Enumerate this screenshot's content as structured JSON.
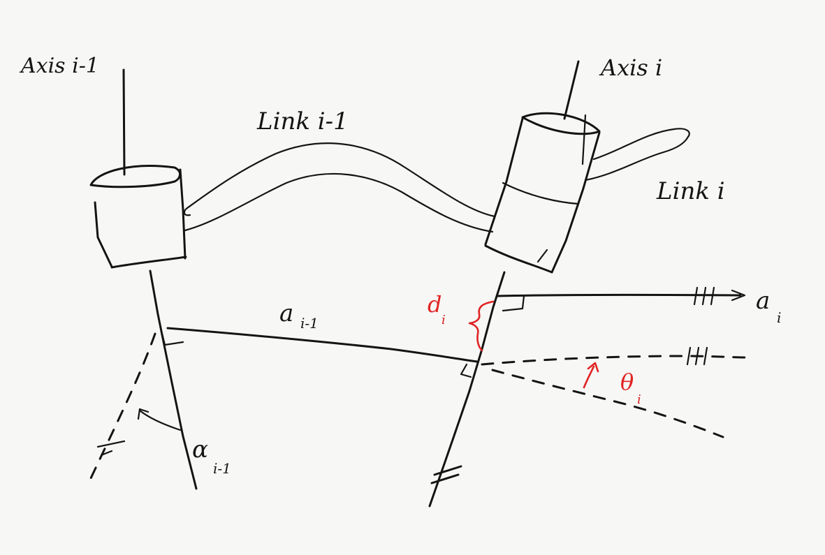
{
  "labels": {
    "axis_prev": "Axis i-1",
    "axis_curr": "Axis i",
    "link_prev": "Link i-1",
    "link_curr": "Link i",
    "a_prev_main": "a",
    "a_prev_sub": "i-1",
    "a_curr_main": "a",
    "a_curr_sub": "i",
    "alpha_prev_main": "α",
    "alpha_prev_sub": "i-1",
    "d_curr_main": "d",
    "d_curr_sub": "i",
    "theta_curr_main": "θ",
    "theta_curr_sub": "i"
  },
  "colors": {
    "ink": "#141414",
    "highlight": "#e02424",
    "paper": "#f7f7f5"
  }
}
